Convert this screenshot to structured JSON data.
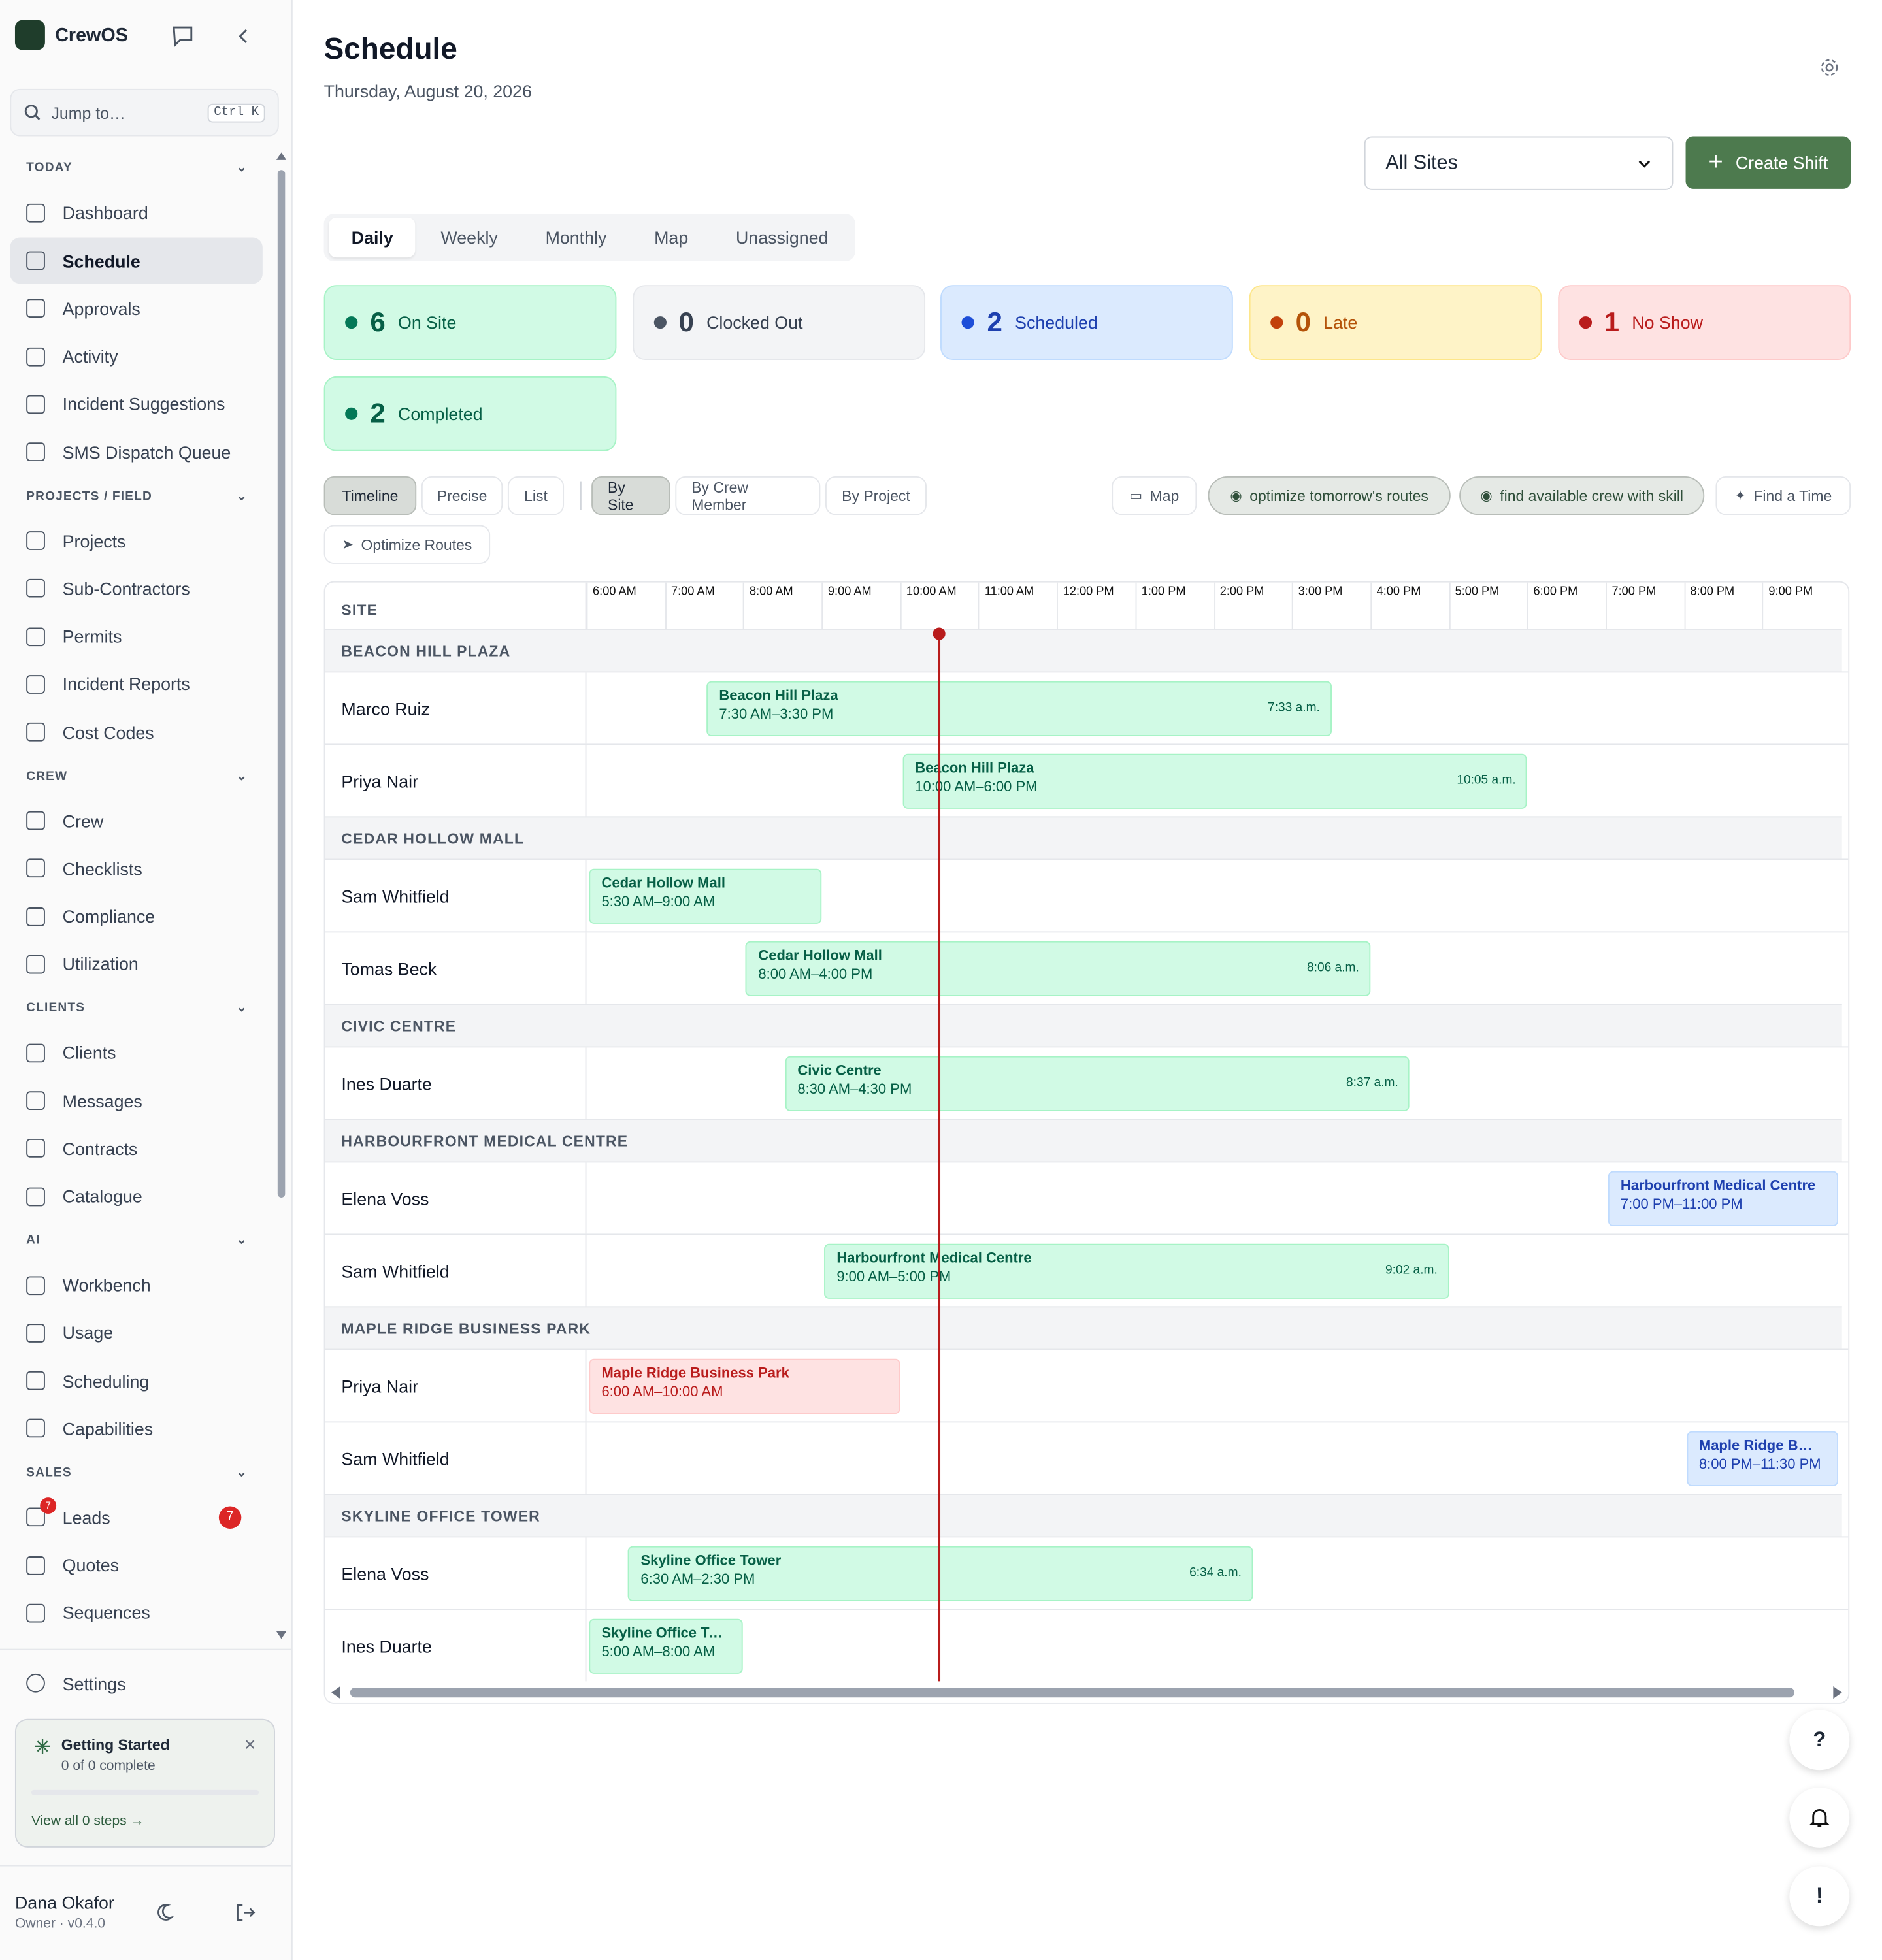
{
  "brand": "CrewOS",
  "search": {
    "placeholder": "Jump to…",
    "shortcut": "Ctrl K"
  },
  "nav": [
    {
      "title": "TODAY",
      "items": [
        {
          "label": "Dashboard"
        },
        {
          "label": "Schedule",
          "active": true
        },
        {
          "label": "Approvals"
        },
        {
          "label": "Activity"
        },
        {
          "label": "Incident Suggestions"
        },
        {
          "label": "SMS Dispatch Queue"
        }
      ]
    },
    {
      "title": "PROJECTS / FIELD",
      "items": [
        {
          "label": "Projects"
        },
        {
          "label": "Sub-Contractors"
        },
        {
          "label": "Permits"
        },
        {
          "label": "Incident Reports"
        },
        {
          "label": "Cost Codes"
        }
      ]
    },
    {
      "title": "CREW",
      "items": [
        {
          "label": "Crew"
        },
        {
          "label": "Checklists"
        },
        {
          "label": "Compliance"
        },
        {
          "label": "Utilization"
        }
      ]
    },
    {
      "title": "CLIENTS",
      "items": [
        {
          "label": "Clients"
        },
        {
          "label": "Messages"
        },
        {
          "label": "Contracts"
        },
        {
          "label": "Catalogue"
        }
      ]
    },
    {
      "title": "AI",
      "items": [
        {
          "label": "Workbench"
        },
        {
          "label": "Usage"
        },
        {
          "label": "Scheduling"
        },
        {
          "label": "Capabilities"
        }
      ]
    },
    {
      "title": "SALES",
      "items": [
        {
          "label": "Leads",
          "badge": 7
        },
        {
          "label": "Quotes"
        },
        {
          "label": "Sequences"
        }
      ]
    }
  ],
  "settings": "Settings",
  "getting_started": {
    "title": "Getting Started",
    "progress": "0 of 0 complete",
    "link": "View all 0 steps →"
  },
  "user": {
    "name": "Dana Okafor",
    "role": "Owner · v0.4.0"
  },
  "header": {
    "title": "Schedule",
    "date": "Thursday, August 20, 2026"
  },
  "site_select": "All Sites",
  "create_button": "Create Shift",
  "tabs": {
    "items": [
      "Daily",
      "Weekly",
      "Monthly",
      "Map",
      "Unassigned"
    ],
    "active": 0
  },
  "stats": [
    {
      "count": 6,
      "label": "On Site",
      "color": "green"
    },
    {
      "count": 0,
      "label": "Clocked Out",
      "color": "gray"
    },
    {
      "count": 2,
      "label": "Scheduled",
      "color": "blue"
    },
    {
      "count": 0,
      "label": "Late",
      "color": "yellow"
    },
    {
      "count": 1,
      "label": "No Show",
      "color": "red"
    },
    {
      "count": 2,
      "label": "Completed",
      "color": "green"
    }
  ],
  "view_modes": {
    "items": [
      "Timeline",
      "Precise",
      "List"
    ],
    "active": 0
  },
  "group_by": {
    "items": [
      "By Site",
      "By Crew Member",
      "By Project"
    ],
    "active": 0
  },
  "actions": [
    "Map",
    "optimize tomorrow's routes",
    "find available crew with skill",
    "Find a Time",
    "Optimize Routes"
  ],
  "timeline": {
    "column_header": "SITE",
    "hours": [
      "6:00 AM",
      "7:00 AM",
      "8:00 AM",
      "9:00 AM",
      "10:00 AM",
      "11:00 AM",
      "12:00 PM",
      "1:00 PM",
      "2:00 PM",
      "3:00 PM",
      "4:00 PM",
      "5:00 PM",
      "6:00 PM",
      "7:00 PM",
      "8:00 PM",
      "9:00 PM"
    ],
    "groups": [
      {
        "site": "BEACON HILL PLAZA",
        "rows": [
          {
            "name": "Marco Ruiz",
            "shift": {
              "site": "Beacon Hill Plaza",
              "time": "7:30 AM–3:30 PM",
              "clock_in": "7:33 a.m.",
              "color": "green"
            }
          },
          {
            "name": "Priya Nair",
            "shift": {
              "site": "Beacon Hill Plaza",
              "time": "10:00 AM–6:00 PM",
              "clock_in": "10:05 a.m.",
              "color": "green"
            }
          }
        ]
      },
      {
        "site": "CEDAR HOLLOW MALL",
        "rows": [
          {
            "name": "Sam Whitfield",
            "shift": {
              "site": "Cedar Hollow Mall",
              "time": "5:30 AM–9:00 AM",
              "color": "green"
            }
          },
          {
            "name": "Tomas Beck",
            "shift": {
              "site": "Cedar Hollow Mall",
              "time": "8:00 AM–4:00 PM",
              "clock_in": "8:06 a.m.",
              "color": "green"
            }
          }
        ]
      },
      {
        "site": "CIVIC CENTRE",
        "rows": [
          {
            "name": "Ines Duarte",
            "shift": {
              "site": "Civic Centre",
              "time": "8:30 AM–4:30 PM",
              "clock_in": "8:37 a.m.",
              "color": "green"
            }
          }
        ]
      },
      {
        "site": "HARBOURFRONT MEDICAL CENTRE",
        "rows": [
          {
            "name": "Elena Voss",
            "shift": {
              "site": "Harbourfront Medical Centre",
              "time": "7:00 PM–11:00 PM",
              "color": "blue"
            }
          },
          {
            "name": "Sam Whitfield",
            "shift": {
              "site": "Harbourfront Medical Centre",
              "time": "9:00 AM–5:00 PM",
              "clock_in": "9:02 a.m.",
              "color": "green"
            }
          }
        ]
      },
      {
        "site": "MAPLE RIDGE BUSINESS PARK",
        "rows": [
          {
            "name": "Priya Nair",
            "shift": {
              "site": "Maple Ridge Business Park",
              "time": "6:00 AM–10:00 AM",
              "color": "red"
            }
          },
          {
            "name": "Sam Whitfield",
            "shift": {
              "site": "Maple Ridge Business Park",
              "time": "8:00 PM–11:30 PM",
              "color": "blue"
            }
          }
        ]
      },
      {
        "site": "SKYLINE OFFICE TOWER",
        "rows": [
          {
            "name": "Elena Voss",
            "shift": {
              "site": "Skyline Office Tower",
              "time": "6:30 AM–2:30 PM",
              "clock_in": "6:34 a.m.",
              "color": "green"
            }
          },
          {
            "name": "Ines Duarte",
            "shift": {
              "site": "Skyline Office Tower",
              "time": "5:00 AM–8:00 AM",
              "color": "green"
            }
          }
        ]
      }
    ]
  }
}
